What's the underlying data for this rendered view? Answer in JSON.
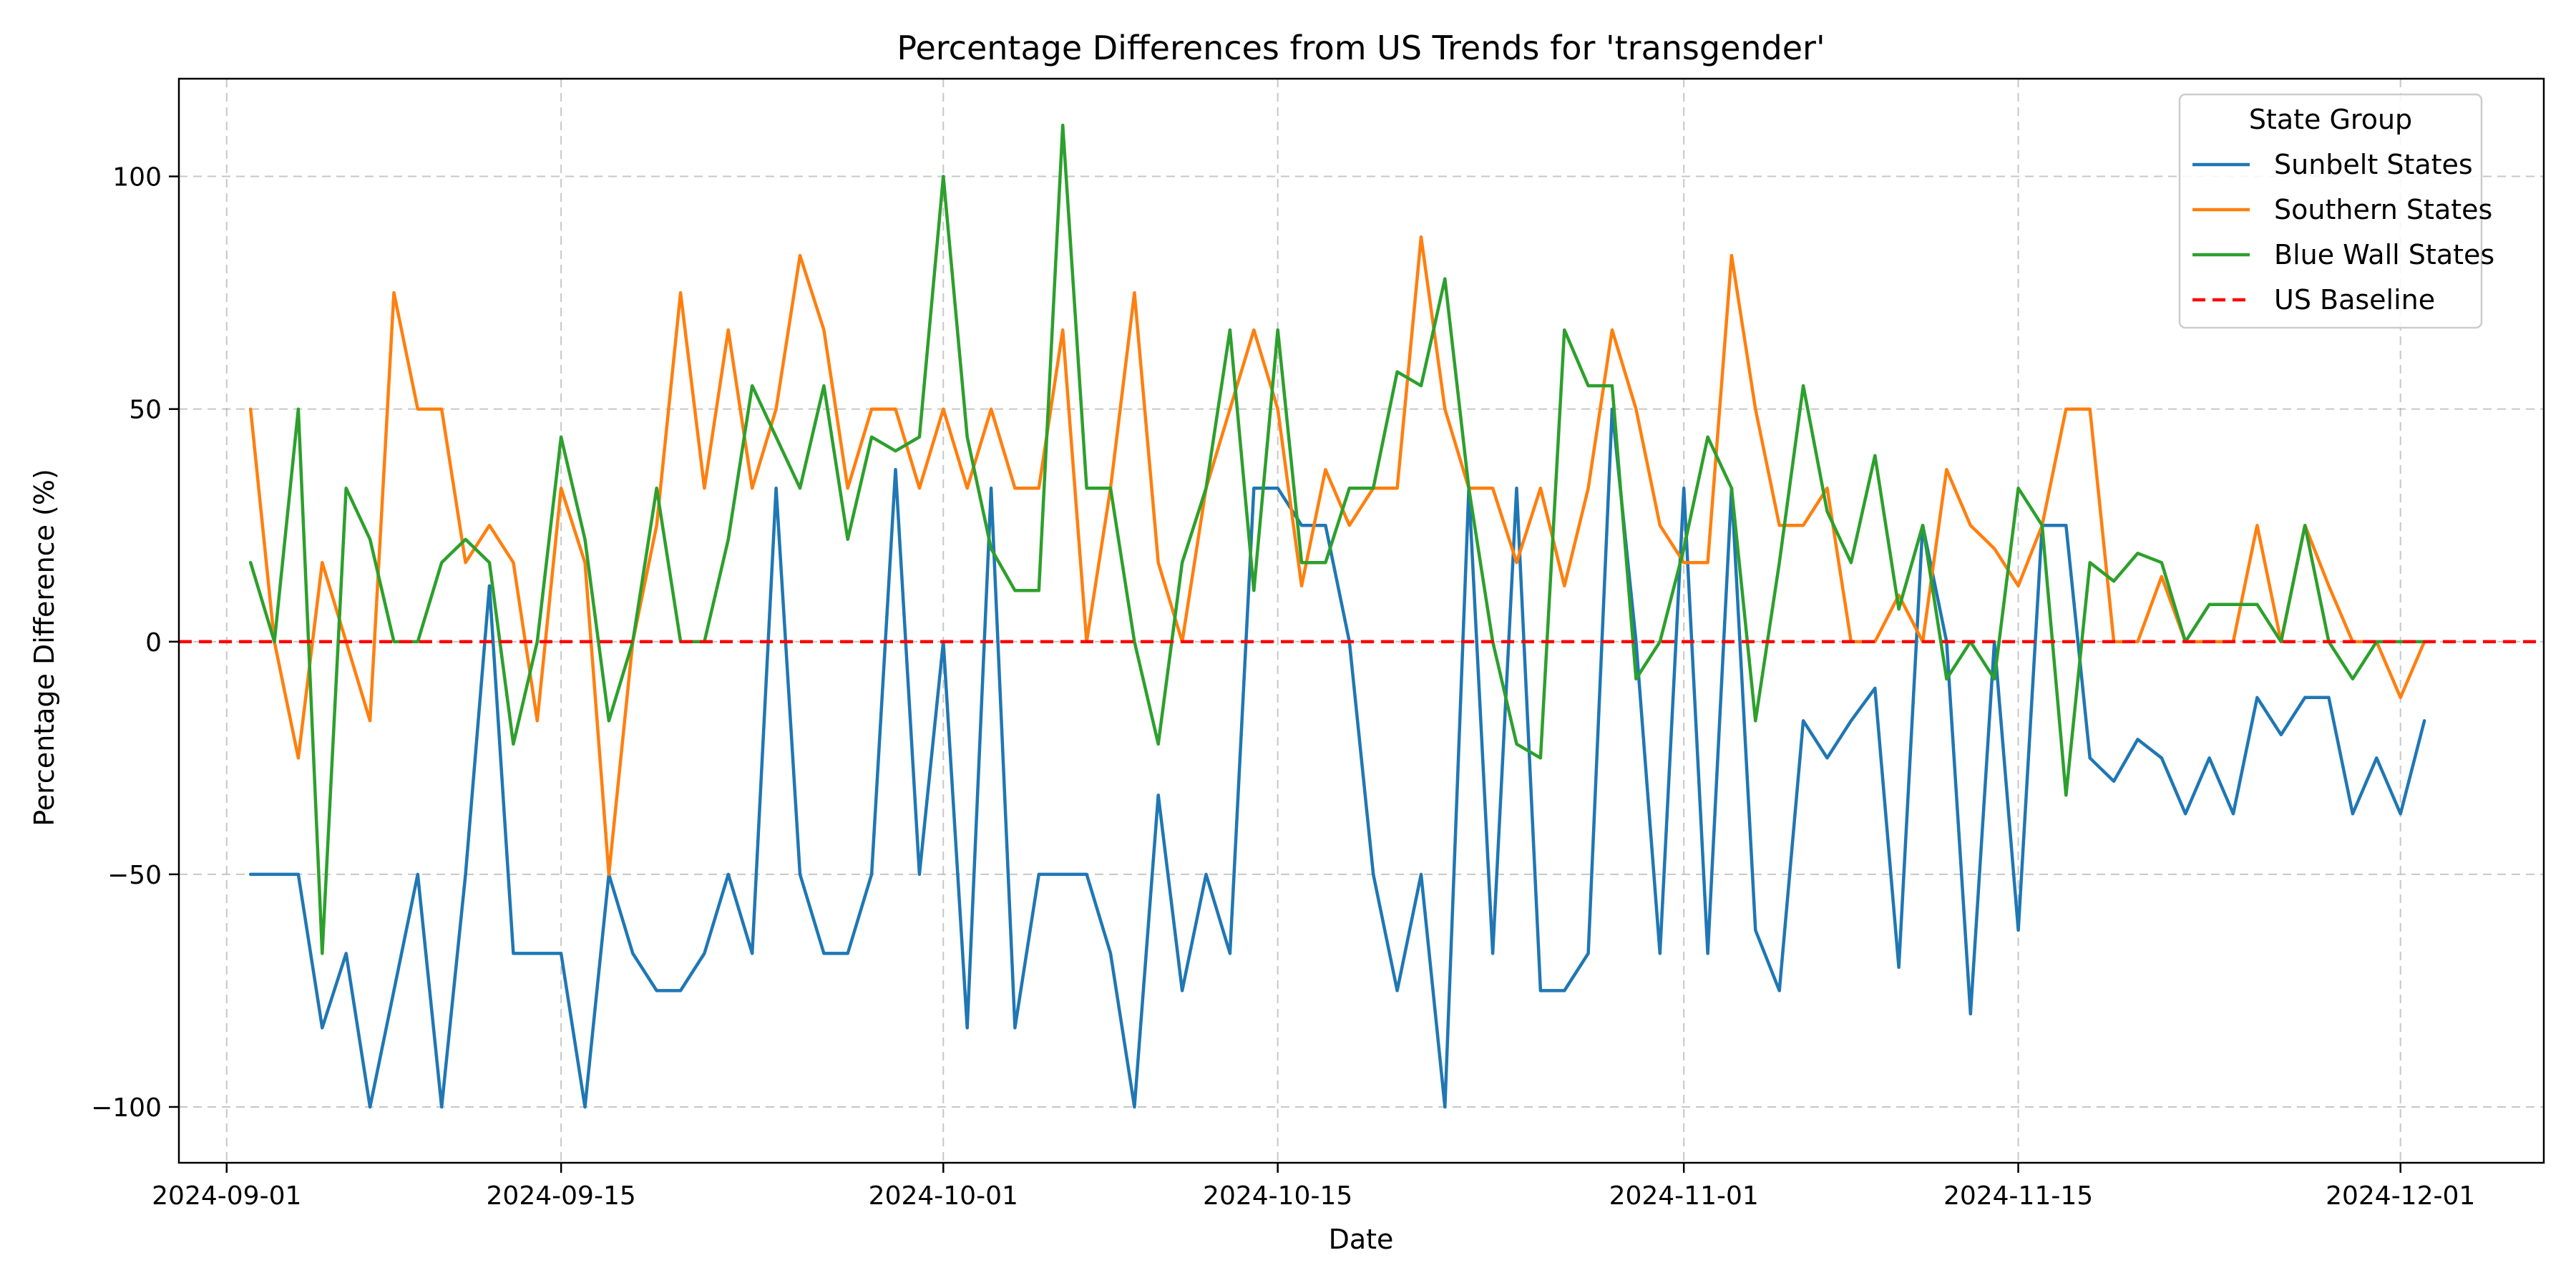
{
  "chart_data": {
    "type": "line",
    "title": "Percentage Differences from US Trends for 'transgender'",
    "xlabel": "Date",
    "ylabel": "Percentage Difference (%)",
    "ylim": [
      -112,
      121
    ],
    "xlim": [
      "2024-08-30",
      "2024-12-07"
    ],
    "grid": true,
    "x_ticks": [
      "2024-09-01",
      "2024-09-15",
      "2024-10-01",
      "2024-10-15",
      "2024-11-01",
      "2024-11-15",
      "2024-12-01"
    ],
    "y_ticks": [
      -100,
      -50,
      0,
      50,
      100
    ],
    "y_tick_labels": [
      "−100",
      "−50",
      "0",
      "50",
      "100"
    ],
    "legend": {
      "title": "State Group",
      "position": "top-right"
    },
    "start_date": "2024-09-02",
    "series": [
      {
        "name": "Sunbelt States",
        "color": "#1f77b4",
        "values": [
          -50,
          -50,
          -50,
          -83,
          -67,
          -100,
          -75,
          -50,
          -100,
          -50,
          12,
          -67,
          -67,
          -67,
          -100,
          -50,
          -67,
          -75,
          -75,
          -67,
          -50,
          -67,
          33,
          -50,
          -67,
          -67,
          -50,
          37,
          -50,
          0,
          -83,
          33,
          -83,
          -50,
          -50,
          -50,
          -67,
          -100,
          -33,
          -75,
          -50,
          -67,
          33,
          33,
          25,
          25,
          0,
          -50,
          -75,
          -50,
          -100,
          33,
          -67,
          33,
          -75,
          -75,
          -67,
          50,
          0,
          -67,
          33,
          -67,
          33,
          -62,
          -75,
          -17,
          -25,
          -17,
          -10,
          -70,
          25,
          0,
          -80,
          0,
          -62,
          25,
          25,
          -25,
          -30,
          -21,
          -25,
          -37,
          -25,
          -37,
          -12,
          -20,
          -12,
          -12,
          -37,
          -25,
          -37,
          -17
        ]
      },
      {
        "name": "Southern States",
        "color": "#ff7f0e",
        "values": [
          50,
          0,
          -25,
          17,
          0,
          -17,
          75,
          50,
          50,
          17,
          25,
          17,
          -17,
          33,
          17,
          -50,
          0,
          25,
          75,
          33,
          67,
          33,
          50,
          83,
          67,
          33,
          50,
          50,
          33,
          50,
          33,
          50,
          33,
          33,
          67,
          0,
          33,
          75,
          17,
          0,
          33,
          50,
          67,
          50,
          12,
          37,
          25,
          33,
          33,
          87,
          50,
          33,
          33,
          17,
          33,
          12,
          33,
          67,
          50,
          25,
          17,
          17,
          83,
          50,
          25,
          25,
          33,
          0,
          0,
          10,
          0,
          37,
          25,
          20,
          12,
          25,
          50,
          50,
          0,
          0,
          14,
          0,
          0,
          0,
          25,
          0,
          25,
          12,
          0,
          0,
          -12,
          0
        ]
      },
      {
        "name": "Blue Wall States",
        "color": "#2ca02c",
        "values": [
          17,
          0,
          50,
          -67,
          33,
          22,
          0,
          0,
          17,
          22,
          17,
          -22,
          0,
          44,
          22,
          -17,
          0,
          33,
          0,
          0,
          22,
          55,
          44,
          33,
          55,
          22,
          44,
          41,
          44,
          100,
          44,
          20,
          11,
          11,
          111,
          33,
          33,
          0,
          -22,
          17,
          33,
          67,
          11,
          67,
          17,
          17,
          33,
          33,
          58,
          55,
          78,
          33,
          0,
          -22,
          -25,
          67,
          55,
          55,
          -8,
          0,
          20,
          44,
          33,
          -17,
          17,
          55,
          28,
          17,
          40,
          7,
          25,
          -8,
          0,
          -8,
          33,
          25,
          -33,
          17,
          13,
          19,
          17,
          0,
          8,
          8,
          8,
          0,
          25,
          0,
          -8,
          0,
          0,
          0
        ]
      },
      {
        "name": "US Baseline",
        "color": "#ff0000",
        "dashed": true,
        "constant": 0
      }
    ]
  }
}
